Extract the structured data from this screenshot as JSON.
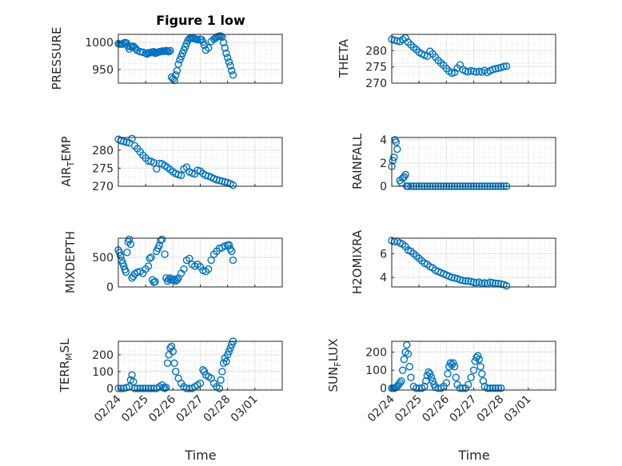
{
  "figure": {
    "title": "Figure 1 low",
    "marker_color": "#0072bd"
  },
  "chart_data": [
    {
      "type": "scatter",
      "name": "pressure",
      "ylabel": "PRESSURE",
      "yticks": [
        "950",
        "1000"
      ],
      "ylim": [
        925,
        1015
      ],
      "xlim": [
        0,
        6
      ],
      "x": [
        0.0,
        0.05,
        0.1,
        0.15,
        0.2,
        0.25,
        0.3,
        0.35,
        0.4,
        0.45,
        0.5,
        0.55,
        0.6,
        0.65,
        0.7,
        0.8,
        0.9,
        1.0,
        1.05,
        1.1,
        1.15,
        1.2,
        1.25,
        1.3,
        1.35,
        1.4,
        1.45,
        1.5,
        1.55,
        1.6,
        1.65,
        1.7,
        1.75,
        1.8,
        1.85,
        1.9,
        1.95,
        2.0,
        2.05,
        2.1,
        2.15,
        2.2,
        2.25,
        2.3,
        2.35,
        2.4,
        2.45,
        2.5,
        2.55,
        2.6,
        2.65,
        2.7,
        2.75,
        2.8,
        2.85,
        2.9,
        3.0,
        3.05,
        3.1,
        3.15,
        3.2,
        3.3,
        3.4,
        3.5,
        3.55,
        3.6,
        3.65,
        3.7,
        3.75,
        3.8,
        3.85,
        3.9,
        3.95,
        4.0,
        4.05,
        4.1,
        4.15,
        4.2
      ],
      "y": [
        998,
        997,
        997,
        997,
        999,
        1000,
        999,
        993,
        988,
        992,
        993,
        993,
        991,
        988,
        985,
        983,
        982,
        980,
        979,
        981,
        981,
        982,
        982,
        983,
        980,
        981,
        982,
        983,
        983,
        984,
        984,
        984,
        985,
        984,
        983,
        985,
        936,
        933,
        930,
        940,
        948,
        960,
        968,
        974,
        980,
        986,
        992,
        998,
        1004,
        1007,
        1008,
        1008,
        1008,
        1007,
        1006,
        1005,
        1006,
        1005,
        1001,
        995,
        986,
        990,
        1002,
        1006,
        1008,
        1010,
        1011,
        1012,
        1012,
        1010,
        1000,
        990,
        980,
        972,
        964,
        957,
        948,
        940
      ]
    },
    {
      "type": "scatter",
      "name": "theta",
      "ylabel": "THETA",
      "yticks": [
        "270",
        "275",
        "280"
      ],
      "ylim": [
        270,
        285
      ],
      "xlim": [
        0,
        6
      ],
      "x": [
        0.0,
        0.1,
        0.2,
        0.3,
        0.4,
        0.5,
        0.6,
        0.7,
        0.8,
        0.9,
        1.0,
        1.1,
        1.2,
        1.3,
        1.4,
        1.5,
        1.6,
        1.7,
        1.8,
        1.9,
        2.0,
        2.1,
        2.2,
        2.3,
        2.4,
        2.5,
        2.6,
        2.7,
        2.8,
        2.9,
        3.0,
        3.1,
        3.2,
        3.3,
        3.4,
        3.5,
        3.6,
        3.7,
        3.8,
        3.9,
        4.0,
        4.1,
        4.2
      ],
      "y": [
        283.5,
        283.2,
        283.0,
        282.8,
        283.4,
        283.9,
        282.6,
        281.8,
        281.0,
        280.3,
        279.5,
        279.0,
        278.6,
        278.3,
        279.8,
        279.0,
        278.0,
        277.0,
        276.2,
        275.5,
        274.5,
        273.7,
        273.1,
        273.3,
        274.6,
        275.6,
        274.2,
        273.7,
        273.5,
        273.8,
        273.6,
        273.4,
        273.6,
        273.4,
        273.9,
        273.3,
        273.8,
        274.2,
        274.4,
        274.6,
        274.8,
        275.1,
        275.2
      ]
    },
    {
      "type": "scatter",
      "name": "air_temp",
      "ylabel": "AIR_TEMP",
      "yticks": [
        "270",
        "275",
        "280"
      ],
      "ylim": [
        270,
        283.5
      ],
      "xlim": [
        0,
        6
      ],
      "x": [
        0.0,
        0.1,
        0.2,
        0.3,
        0.4,
        0.5,
        0.6,
        0.7,
        0.8,
        0.9,
        1.0,
        1.1,
        1.2,
        1.3,
        1.4,
        1.5,
        1.6,
        1.7,
        1.8,
        1.9,
        2.0,
        2.1,
        2.2,
        2.3,
        2.4,
        2.5,
        2.6,
        2.7,
        2.8,
        2.9,
        3.0,
        3.1,
        3.2,
        3.3,
        3.4,
        3.5,
        3.6,
        3.7,
        3.8,
        3.9,
        4.0,
        4.1,
        4.2
      ],
      "y": [
        283.0,
        282.6,
        282.4,
        282.2,
        282.0,
        283.2,
        281.2,
        280.4,
        279.5,
        278.6,
        277.8,
        277.0,
        276.9,
        276.5,
        274.8,
        276.3,
        276.2,
        275.7,
        275.2,
        274.6,
        274.0,
        273.5,
        273.2,
        273.0,
        274.8,
        275.3,
        274.0,
        273.6,
        273.4,
        274.4,
        274.2,
        273.5,
        273.0,
        272.8,
        272.5,
        272.1,
        271.8,
        271.6,
        271.4,
        271.2,
        271.0,
        270.7,
        270.3
      ]
    },
    {
      "type": "scatter",
      "name": "rainfall",
      "ylabel": "RAINFALL",
      "yticks": [
        "0",
        "2",
        "4"
      ],
      "ylim": [
        0,
        4.2
      ],
      "xlim": [
        0,
        6
      ],
      "x": [
        0.0,
        0.04,
        0.08,
        0.12,
        0.16,
        0.2,
        0.3,
        0.35,
        0.4,
        0.45,
        0.5,
        0.55,
        0.6,
        0.7,
        0.8,
        0.9,
        1.0,
        1.1,
        1.2,
        1.3,
        1.4,
        1.5,
        1.6,
        1.7,
        1.8,
        1.9,
        2.0,
        2.1,
        2.2,
        2.3,
        2.4,
        2.5,
        2.6,
        2.7,
        2.8,
        2.9,
        3.0,
        3.1,
        3.2,
        3.3,
        3.4,
        3.5,
        3.6,
        3.7,
        3.8,
        3.9,
        4.0,
        4.1,
        4.2
      ],
      "y": [
        1.7,
        2.2,
        2.5,
        4.0,
        3.8,
        3.2,
        0.5,
        0.3,
        0.7,
        0.8,
        1.0,
        0,
        0,
        0,
        0,
        0,
        0,
        0,
        0,
        0,
        0,
        0,
        0,
        0,
        0,
        0,
        0,
        0,
        0,
        0,
        0,
        0,
        0,
        0,
        0,
        0,
        0,
        0,
        0,
        0,
        0,
        0,
        0,
        0,
        0,
        0,
        0,
        0,
        0
      ]
    },
    {
      "type": "scatter",
      "name": "mixdepth",
      "ylabel": "MIXDEPTH",
      "yticks": [
        "0",
        "500"
      ],
      "ylim": [
        0,
        820
      ],
      "xlim": [
        0,
        6
      ],
      "x": [
        0.0,
        0.04,
        0.08,
        0.12,
        0.16,
        0.2,
        0.24,
        0.28,
        0.32,
        0.36,
        0.4,
        0.45,
        0.5,
        0.55,
        0.6,
        0.7,
        0.8,
        0.9,
        1.0,
        1.1,
        1.15,
        1.2,
        1.25,
        1.3,
        1.35,
        1.4,
        1.45,
        1.5,
        1.55,
        1.6,
        1.7,
        1.75,
        1.8,
        1.85,
        1.9,
        1.95,
        2.0,
        2.05,
        2.1,
        2.15,
        2.2,
        2.3,
        2.4,
        2.5,
        2.6,
        2.7,
        2.8,
        2.9,
        3.0,
        3.1,
        3.2,
        3.3,
        3.4,
        3.5,
        3.6,
        3.7,
        3.8,
        3.9,
        4.0,
        4.05,
        4.1,
        4.15,
        4.2
      ],
      "y": [
        620,
        580,
        520,
        450,
        400,
        350,
        290,
        250,
        580,
        760,
        800,
        720,
        150,
        180,
        220,
        250,
        260,
        230,
        300,
        350,
        480,
        500,
        120,
        80,
        90,
        600,
        650,
        700,
        780,
        800,
        550,
        150,
        100,
        130,
        150,
        120,
        110,
        130,
        100,
        120,
        150,
        230,
        300,
        450,
        480,
        380,
        350,
        380,
        340,
        280,
        260,
        300,
        450,
        550,
        600,
        650,
        660,
        690,
        700,
        710,
        640,
        600,
        450
      ]
    },
    {
      "type": "scatter",
      "name": "h2omixra",
      "ylabel": "H2OMIXRA",
      "yticks": [
        "4",
        "6"
      ],
      "ylim": [
        3.2,
        7.3
      ],
      "xlim": [
        0,
        6
      ],
      "x": [
        0.0,
        0.1,
        0.2,
        0.3,
        0.4,
        0.5,
        0.6,
        0.7,
        0.8,
        0.9,
        1.0,
        1.1,
        1.2,
        1.3,
        1.4,
        1.5,
        1.6,
        1.7,
        1.8,
        1.9,
        2.0,
        2.1,
        2.2,
        2.3,
        2.4,
        2.5,
        2.6,
        2.7,
        2.8,
        2.9,
        3.0,
        3.1,
        3.2,
        3.3,
        3.4,
        3.5,
        3.6,
        3.7,
        3.8,
        3.9,
        4.0,
        4.1,
        4.2
      ],
      "y": [
        7.1,
        7.0,
        7.05,
        6.9,
        6.8,
        6.6,
        6.3,
        6.2,
        6.0,
        5.8,
        5.6,
        5.4,
        5.2,
        5.1,
        4.9,
        4.8,
        4.6,
        4.5,
        4.4,
        4.3,
        4.2,
        4.1,
        4.0,
        3.95,
        3.9,
        3.8,
        3.75,
        3.7,
        3.7,
        3.65,
        3.6,
        3.55,
        3.6,
        3.5,
        3.55,
        3.5,
        3.6,
        3.55,
        3.5,
        3.5,
        3.45,
        3.4,
        3.3
      ]
    },
    {
      "type": "scatter",
      "name": "terr_msl",
      "ylabel": "TERR_MSL",
      "yticks": [
        "0",
        "100",
        "200"
      ],
      "ylim": [
        -10,
        280
      ],
      "xlim": [
        0,
        6
      ],
      "x": [
        0.0,
        0.1,
        0.2,
        0.3,
        0.4,
        0.45,
        0.5,
        0.55,
        0.6,
        0.7,
        0.8,
        0.9,
        1.0,
        1.1,
        1.2,
        1.3,
        1.4,
        1.5,
        1.6,
        1.65,
        1.7,
        1.75,
        1.8,
        1.85,
        1.9,
        1.95,
        2.0,
        2.05,
        2.1,
        2.2,
        2.3,
        2.4,
        2.5,
        2.6,
        2.7,
        2.8,
        2.9,
        3.0,
        3.1,
        3.15,
        3.2,
        3.3,
        3.4,
        3.5,
        3.6,
        3.7,
        3.75,
        3.8,
        3.85,
        3.9,
        3.95,
        4.0,
        4.05,
        4.1,
        4.15,
        4.2
      ],
      "y": [
        0,
        0,
        0,
        5,
        10,
        50,
        80,
        40,
        0,
        0,
        0,
        0,
        0,
        0,
        0,
        0,
        0,
        10,
        20,
        5,
        0,
        5,
        150,
        200,
        240,
        250,
        220,
        150,
        100,
        60,
        30,
        10,
        0,
        0,
        0,
        10,
        20,
        30,
        110,
        100,
        80,
        70,
        60,
        30,
        10,
        0,
        50,
        100,
        150,
        180,
        160,
        200,
        220,
        240,
        260,
        280
      ]
    },
    {
      "type": "scatter",
      "name": "sun_flux",
      "ylabel": "SUN_FLUX",
      "yticks": [
        "0",
        "100",
        "200"
      ],
      "ylim": [
        -10,
        260
      ],
      "xlim": [
        0,
        6
      ],
      "x": [
        0.0,
        0.05,
        0.1,
        0.15,
        0.2,
        0.25,
        0.3,
        0.35,
        0.4,
        0.45,
        0.5,
        0.55,
        0.6,
        0.65,
        0.7,
        0.8,
        0.9,
        1.0,
        1.1,
        1.2,
        1.25,
        1.3,
        1.35,
        1.4,
        1.45,
        1.5,
        1.55,
        1.6,
        1.7,
        1.8,
        1.9,
        2.0,
        2.05,
        2.1,
        2.15,
        2.2,
        2.25,
        2.3,
        2.35,
        2.4,
        2.5,
        2.6,
        2.7,
        2.8,
        2.9,
        3.0,
        3.05,
        3.1,
        3.15,
        3.2,
        3.25,
        3.3,
        3.35,
        3.4,
        3.5,
        3.6,
        3.7,
        3.8,
        3.9,
        4.0
      ],
      "y": [
        0,
        0,
        0,
        5,
        10,
        20,
        30,
        40,
        100,
        160,
        200,
        240,
        190,
        120,
        60,
        10,
        0,
        0,
        0,
        10,
        40,
        70,
        90,
        80,
        60,
        40,
        20,
        5,
        0,
        0,
        10,
        30,
        80,
        120,
        140,
        130,
        140,
        120,
        60,
        20,
        0,
        0,
        0,
        20,
        60,
        100,
        150,
        170,
        180,
        160,
        120,
        80,
        40,
        10,
        0,
        0,
        0,
        0,
        0,
        0
      ]
    }
  ],
  "x_axis": {
    "xticks": [
      "02/24",
      "02/25",
      "02/26",
      "02/27",
      "02/28",
      "03/01"
    ],
    "xlabel": "Time"
  }
}
